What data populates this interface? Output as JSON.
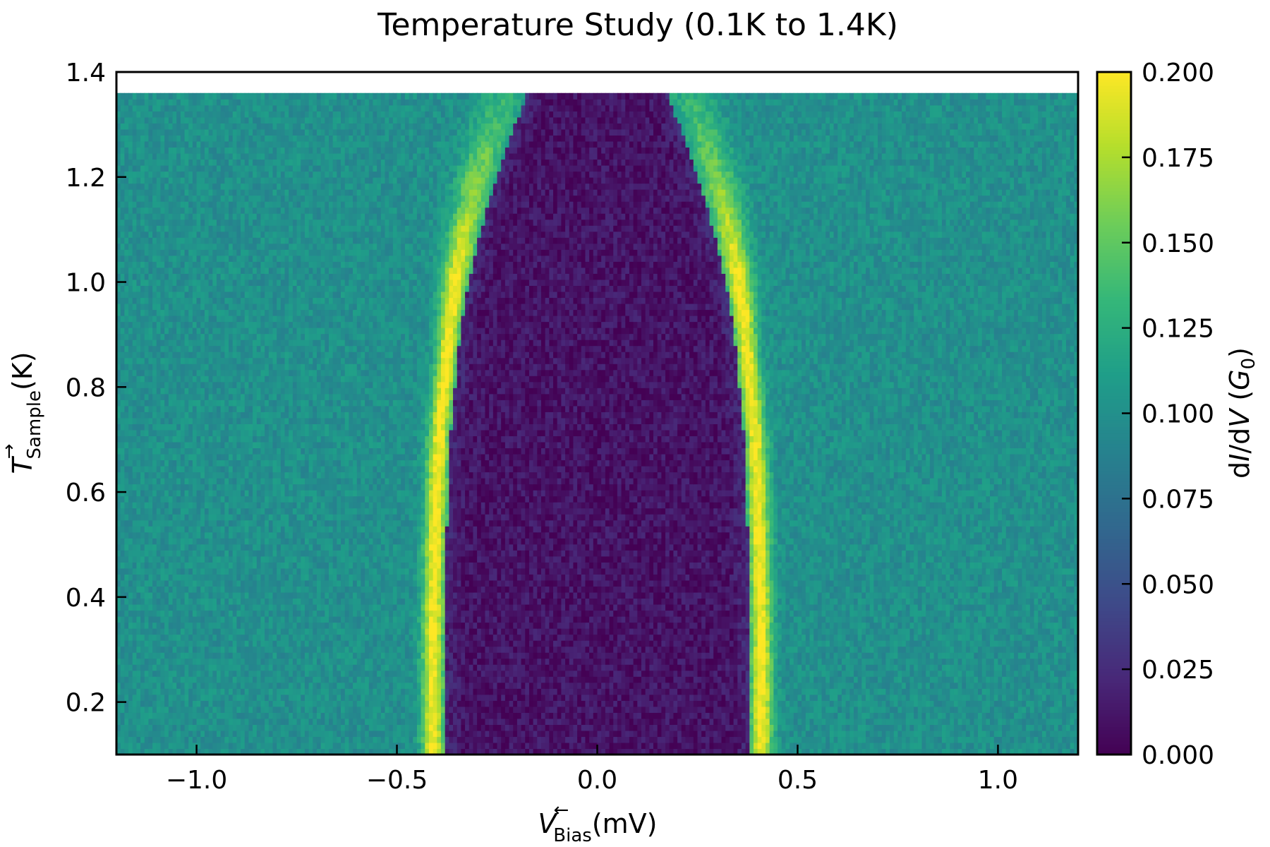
{
  "chart_data": {
    "type": "heatmap",
    "title": "Temperature Study (0.1K to 1.4K)",
    "xlabel": {
      "symbol": "V",
      "accent": "←",
      "subscript": "Bias",
      "unit": "(mV)"
    },
    "ylabel": {
      "symbol": "T",
      "accent": "→",
      "subscript": "Sample",
      "unit": "(K)"
    },
    "colorbar_label": {
      "pre": "d",
      "i1": "I",
      "mid": "/d",
      "i2": "V",
      "open": " (",
      "i3": "G",
      "sub": "0",
      "close": ")"
    },
    "colormap": "viridis",
    "xlim": [
      -1.2,
      1.2
    ],
    "ylim": [
      0.1,
      1.4
    ],
    "data_y_range": [
      0.1,
      1.36
    ],
    "clim": [
      0.0,
      0.2
    ],
    "x_ticks": [
      -1.0,
      -0.5,
      0.0,
      0.5,
      1.0
    ],
    "x_tick_labels": [
      "−1.0",
      "−0.5",
      "0.0",
      "0.5",
      "1.0"
    ],
    "y_ticks": [
      0.2,
      0.4,
      0.6,
      0.8,
      1.0,
      1.2,
      1.4
    ],
    "y_tick_labels": [
      "0.2",
      "0.4",
      "0.6",
      "0.8",
      "1.0",
      "1.2",
      "1.4"
    ],
    "colorbar_ticks": [
      0.0,
      0.025,
      0.05,
      0.075,
      0.1,
      0.125,
      0.15,
      0.175,
      0.2
    ],
    "colorbar_tick_labels": [
      "0.000",
      "0.025",
      "0.050",
      "0.075",
      "0.100",
      "0.125",
      "0.150",
      "0.175",
      "0.200"
    ],
    "gap_edge_vs_temperature": {
      "temperature": [
        0.1,
        0.3,
        0.5,
        0.7,
        0.9,
        1.0,
        1.1,
        1.2,
        1.3,
        1.36
      ],
      "peak_bias": [
        0.41,
        0.41,
        0.405,
        0.395,
        0.37,
        0.355,
        0.33,
        0.3,
        0.26,
        0.23
      ]
    },
    "background_conductance": 0.1,
    "gap_conductance": 0.01,
    "peak_conductance": 0.2,
    "grid": false
  }
}
